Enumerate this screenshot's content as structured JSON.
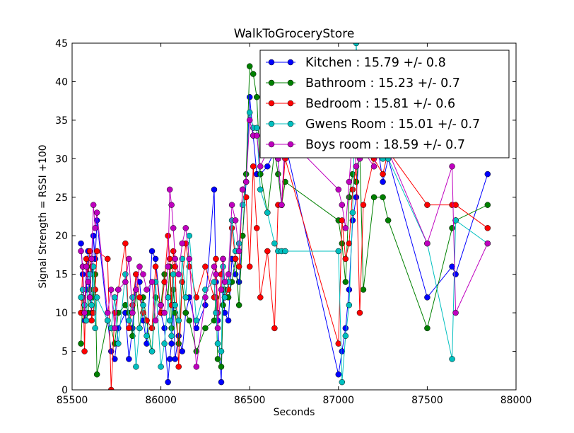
{
  "chart_data": {
    "type": "line",
    "title": "WalkToGroceryStore",
    "xlabel": "Seconds",
    "ylabel": "Signal Strength  = RSSI +100",
    "xlim": [
      85500,
      88000
    ],
    "ylim": [
      0,
      45
    ],
    "xticks": [
      85500,
      86000,
      86500,
      87000,
      87500,
      88000
    ],
    "yticks": [
      0,
      5,
      10,
      15,
      20,
      25,
      30,
      35,
      40,
      45
    ],
    "grid": false,
    "legend_position": "top-right",
    "series": [
      {
        "name": "Kitchen : 15.79 +/- 0.8",
        "color": "#0000ff",
        "x": [
          85550,
          85560,
          85570,
          85580,
          85590,
          85600,
          85610,
          85620,
          85630,
          85640,
          85700,
          85720,
          85740,
          85760,
          85800,
          85820,
          85840,
          85860,
          85880,
          85900,
          85920,
          85950,
          85970,
          86000,
          86020,
          86040,
          86050,
          86060,
          86070,
          86080,
          86100,
          86120,
          86140,
          86160,
          86200,
          86250,
          86300,
          86310,
          86320,
          86340,
          86350,
          86360,
          86380,
          86400,
          86420,
          86440,
          86460,
          86480,
          86500,
          86520,
          86540,
          86560,
          86600,
          86640,
          86660,
          86680,
          86700,
          87000,
          87020,
          87040,
          87060,
          87080,
          87100,
          87120,
          87140,
          87200,
          87250,
          87280,
          87500,
          87640,
          87660,
          87840
        ],
        "y": [
          19,
          15,
          9,
          13,
          18,
          12,
          10,
          20,
          17,
          22,
          9,
          5,
          4,
          8,
          10,
          4,
          8,
          15,
          14,
          9,
          6,
          18,
          17,
          10,
          8,
          1,
          4,
          6,
          11,
          4,
          7,
          5,
          10,
          12,
          8,
          11,
          26,
          14,
          9,
          1,
          13,
          10,
          9,
          17,
          15,
          14,
          20,
          27,
          38,
          33,
          28,
          28,
          29,
          31,
          30,
          24,
          32,
          2,
          5,
          8,
          13,
          22,
          25,
          32,
          37,
          35,
          27,
          30,
          12,
          16,
          15,
          28
        ]
      },
      {
        "name": "Bathroom : 15.23 +/- 0.7",
        "color": "#008000",
        "x": [
          85550,
          85560,
          85570,
          85580,
          85590,
          85600,
          85610,
          85620,
          85630,
          85640,
          85700,
          85720,
          85740,
          85760,
          85800,
          85820,
          85840,
          85860,
          85880,
          85900,
          85920,
          85950,
          85970,
          86000,
          86020,
          86040,
          86050,
          86060,
          86070,
          86080,
          86100,
          86120,
          86140,
          86160,
          86200,
          86250,
          86300,
          86310,
          86320,
          86340,
          86350,
          86360,
          86380,
          86400,
          86420,
          86440,
          86460,
          86480,
          86500,
          86520,
          86540,
          86560,
          86600,
          86640,
          86660,
          86680,
          86700,
          87000,
          87020,
          87040,
          87060,
          87080,
          87100,
          87120,
          87140,
          87200,
          87250,
          87280,
          87500,
          87640,
          87660,
          87840
        ],
        "y": [
          6,
          12,
          11,
          9,
          10,
          13,
          16,
          12,
          15,
          2,
          9,
          8,
          6,
          10,
          11,
          10,
          7,
          13,
          8,
          12,
          9,
          5,
          12,
          11,
          15,
          12,
          16,
          8,
          13,
          10,
          6,
          14,
          10,
          9,
          5,
          8,
          9,
          12,
          4,
          3,
          11,
          13,
          12,
          14,
          17,
          11,
          20,
          28,
          42,
          41,
          38,
          28,
          23,
          31,
          28,
          24,
          27,
          22,
          19,
          14,
          25,
          28,
          27,
          31,
          13,
          25,
          25,
          22,
          8,
          21,
          22,
          24
        ]
      },
      {
        "name": "Bedroom : 15.81 +/- 0.6",
        "color": "#ff0000",
        "x": [
          85550,
          85560,
          85570,
          85580,
          85590,
          85600,
          85610,
          85620,
          85630,
          85640,
          85700,
          85720,
          85740,
          85760,
          85800,
          85820,
          85840,
          85860,
          85880,
          85900,
          85920,
          85950,
          85970,
          86000,
          86020,
          86040,
          86050,
          86060,
          86070,
          86080,
          86100,
          86120,
          86140,
          86160,
          86200,
          86250,
          86300,
          86310,
          86320,
          86340,
          86350,
          86360,
          86380,
          86400,
          86420,
          86440,
          86460,
          86480,
          86500,
          86520,
          86540,
          86560,
          86600,
          86640,
          86660,
          86680,
          86700,
          87000,
          87020,
          87040,
          87060,
          87080,
          87100,
          87120,
          87140,
          87200,
          87250,
          87280,
          87500,
          87640,
          87660,
          87840
        ],
        "y": [
          10,
          16,
          5,
          17,
          15,
          18,
          9,
          10,
          13,
          18,
          17,
          0,
          10,
          13,
          19,
          8,
          11,
          15,
          12,
          10,
          9,
          8,
          16,
          10,
          14,
          20,
          17,
          11,
          18,
          16,
          3,
          14,
          19,
          16,
          12,
          16,
          12,
          17,
          10,
          15,
          17,
          12,
          13,
          21,
          17,
          16,
          26,
          25,
          16,
          29,
          21,
          12,
          18,
          8,
          24,
          24,
          30,
          6,
          22,
          17,
          19,
          26,
          29,
          10,
          24,
          30,
          28,
          31,
          24,
          24,
          24,
          21
        ]
      },
      {
        "name": "Gwens Room : 15.01 +/- 0.7",
        "color": "#00bfbf",
        "x": [
          85550,
          85560,
          85570,
          85580,
          85590,
          85600,
          85610,
          85620,
          85630,
          85640,
          85700,
          85720,
          85740,
          85760,
          85800,
          85820,
          85840,
          85860,
          85880,
          85900,
          85920,
          85950,
          85970,
          86000,
          86020,
          86040,
          86050,
          86060,
          86070,
          86080,
          86100,
          86120,
          86140,
          86160,
          86200,
          86250,
          86300,
          86310,
          86320,
          86340,
          86350,
          86360,
          86380,
          86400,
          86420,
          86440,
          86460,
          86480,
          86500,
          86520,
          86540,
          86560,
          86600,
          86640,
          86660,
          86680,
          86700,
          87000,
          87020,
          87040,
          87060,
          87080,
          87100,
          87120,
          87140,
          87200,
          87250,
          87280,
          87500,
          87640,
          87660,
          87840
        ],
        "y": [
          12,
          13,
          11,
          9,
          14,
          15,
          11,
          16,
          8,
          12,
          9,
          8,
          12,
          6,
          15,
          9,
          12,
          3,
          8,
          11,
          7,
          5,
          14,
          3,
          6,
          12,
          9,
          7,
          15,
          11,
          9,
          17,
          12,
          20,
          9,
          13,
          14,
          10,
          6,
          5,
          16,
          12,
          14,
          22,
          18,
          19,
          24,
          27,
          36,
          34,
          34,
          26,
          23,
          19,
          18,
          18,
          18,
          18,
          1,
          7,
          11,
          23,
          45,
          34,
          32,
          31,
          30,
          30,
          19,
          4,
          22,
          19
        ]
      },
      {
        "name": "Boys room : 18.59 +/- 0.7",
        "color": "#bf00bf",
        "x": [
          85550,
          85560,
          85570,
          85580,
          85590,
          85600,
          85610,
          85620,
          85630,
          85640,
          85700,
          85720,
          85740,
          85760,
          85800,
          85820,
          85840,
          85860,
          85880,
          85900,
          85920,
          85950,
          85970,
          86000,
          86020,
          86040,
          86050,
          86060,
          86070,
          86080,
          86100,
          86120,
          86140,
          86160,
          86200,
          86250,
          86300,
          86310,
          86320,
          86340,
          86350,
          86360,
          86380,
          86400,
          86420,
          86440,
          86460,
          86480,
          86500,
          86520,
          86540,
          86560,
          86600,
          86640,
          86660,
          86680,
          86700,
          87000,
          87020,
          87040,
          87060,
          87080,
          87100,
          87120,
          87140,
          87200,
          87250,
          87280,
          87500,
          87640,
          87660,
          87840
        ],
        "y": [
          18,
          16,
          10,
          16,
          14,
          12,
          17,
          24,
          21,
          23,
          10,
          13,
          8,
          13,
          14,
          17,
          10,
          13,
          16,
          15,
          13,
          14,
          9,
          11,
          10,
          16,
          26,
          24,
          21,
          17,
          15,
          19,
          21,
          17,
          3,
          12,
          16,
          15,
          8,
          13,
          17,
          14,
          15,
          24,
          22,
          18,
          26,
          27,
          35,
          33,
          33,
          29,
          31,
          34,
          30,
          24,
          33,
          26,
          24,
          21,
          27,
          33,
          29,
          30,
          31,
          29,
          33,
          31,
          19,
          29,
          10,
          19
        ]
      }
    ]
  }
}
